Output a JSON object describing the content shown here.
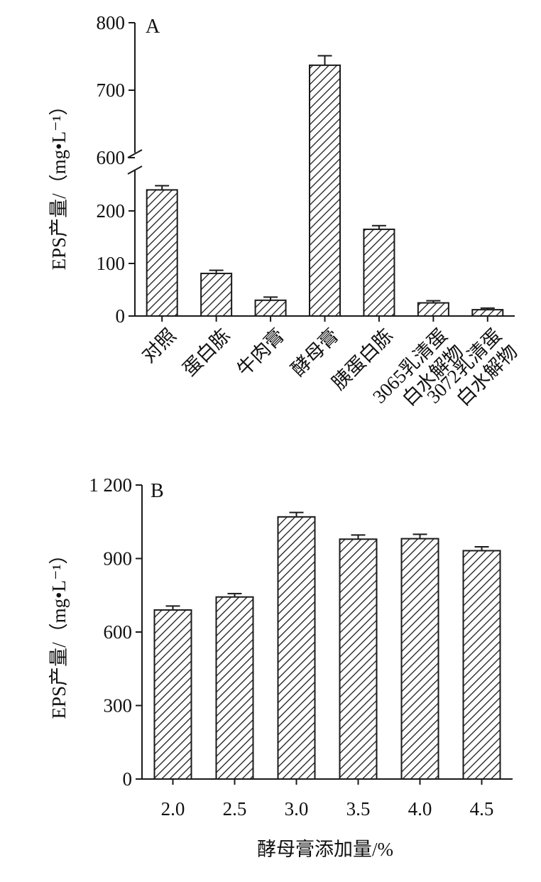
{
  "chart_data": [
    {
      "type": "bar",
      "panel_label": "A",
      "title": "",
      "ylabel": "EPS产量/（mg•L⁻¹）",
      "xlabel": "",
      "categories": [
        [
          "对照"
        ],
        [
          "蛋白胨"
        ],
        [
          "牛肉膏"
        ],
        [
          "酵母膏"
        ],
        [
          "胰蛋白胨"
        ],
        [
          "3065乳清蛋",
          "白水解物"
        ],
        [
          "3072乳清蛋",
          "白水解物"
        ]
      ],
      "values": [
        240,
        81,
        30,
        737,
        165,
        25,
        12
      ],
      "errors": [
        8,
        6,
        6,
        14,
        7,
        4,
        3
      ],
      "y_axis_break": [
        250,
        600
      ],
      "ylim": [
        0,
        800
      ],
      "yticks": [
        0,
        100,
        200,
        600,
        700,
        800
      ],
      "grid": false,
      "bar_fill": "diagonal hatch",
      "colors": {
        "ink": "#1a1a1a",
        "background": "#ffffff"
      }
    },
    {
      "type": "bar",
      "panel_label": "B",
      "title": "",
      "ylabel": "EPS产量/（mg•L⁻¹）",
      "xlabel": "酵母膏添加量/%",
      "categories": [
        "2.0",
        "2.5",
        "3.0",
        "3.5",
        "4.0",
        "4.5"
      ],
      "values": [
        690,
        743,
        1070,
        979,
        981,
        932
      ],
      "errors": [
        16,
        14,
        18,
        17,
        18,
        16
      ],
      "ylim": [
        0,
        1200
      ],
      "yticks": [
        0,
        300,
        600,
        900,
        1200
      ],
      "ytick_labels": [
        "0",
        "300",
        "600",
        "900",
        "1 200"
      ],
      "grid": false,
      "bar_fill": "diagonal hatch",
      "colors": {
        "ink": "#1a1a1a",
        "background": "#ffffff"
      }
    }
  ]
}
